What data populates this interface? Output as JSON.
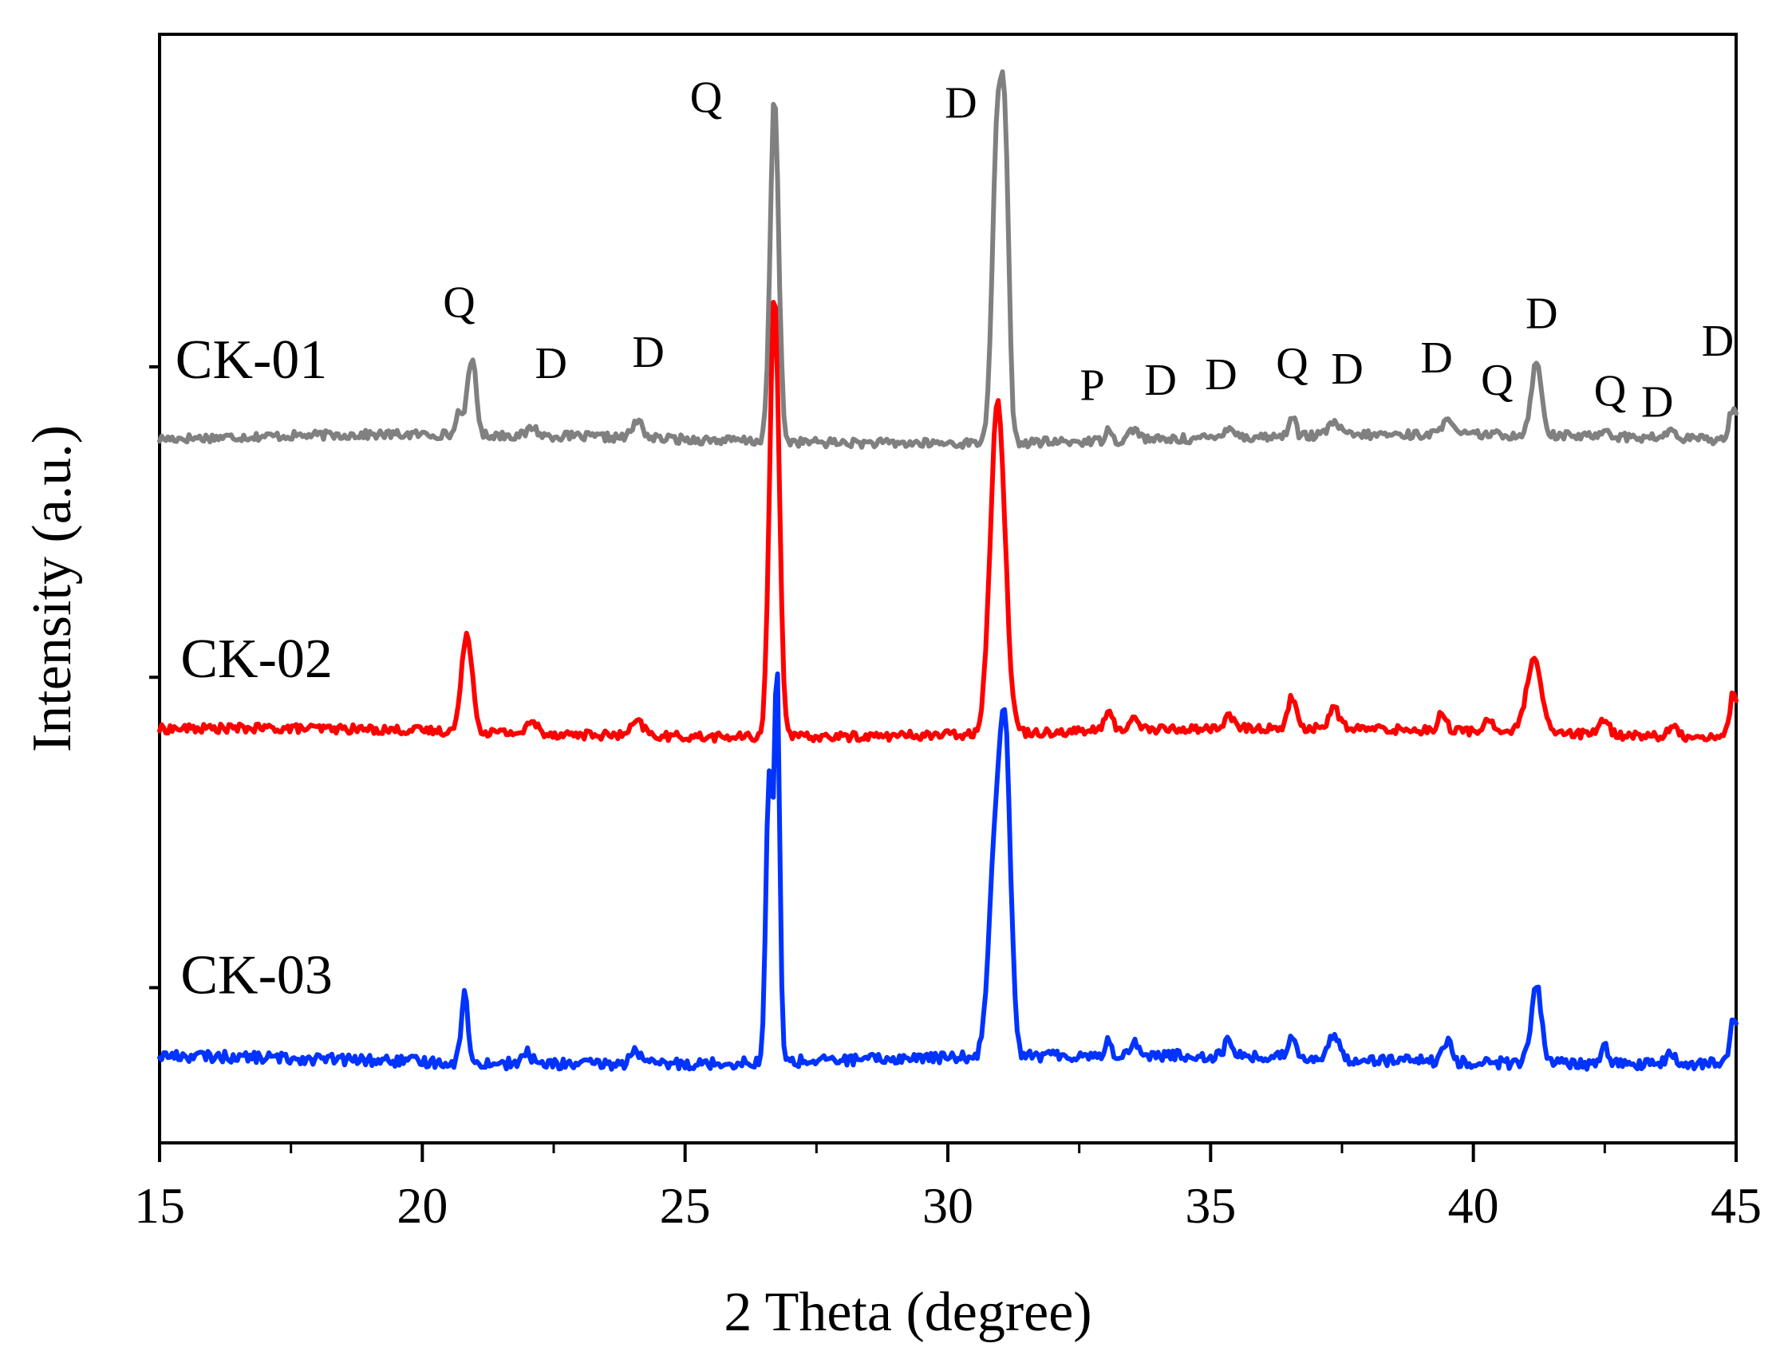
{
  "chart_data": {
    "type": "line",
    "title": "",
    "xlabel": "2 Theta (degree)",
    "ylabel": "Intensity (a.u.)",
    "xlim": [
      15,
      45
    ],
    "ylim": [
      0,
      1
    ],
    "xticks": [
      15,
      20,
      25,
      30,
      35,
      40,
      45
    ],
    "xtick_labels": [
      "15",
      "20",
      "25",
      "30",
      "35",
      "40",
      "45"
    ],
    "xminor_step": 2.5,
    "yticks": [
      0.14,
      0.42,
      0.7
    ],
    "grid": false,
    "series": [
      {
        "name": "CK-01",
        "color": "#808080",
        "baseline": 0.635,
        "noise": 0.004,
        "peaks": [
          [
            20.7,
            0.025,
            0.05
          ],
          [
            20.9,
            0.055,
            0.06
          ],
          [
            21.0,
            0.045,
            0.05
          ],
          [
            22.1,
            0.008,
            0.08
          ],
          [
            24.1,
            0.015,
            0.1
          ],
          [
            26.7,
            0.31,
            0.08
          ],
          [
            30.95,
            0.29,
            0.1
          ],
          [
            31.1,
            0.2,
            0.07
          ],
          [
            33.05,
            0.014,
            0.05
          ],
          [
            33.55,
            0.01,
            0.1
          ],
          [
            35.35,
            0.01,
            0.1
          ],
          [
            36.55,
            0.02,
            0.06
          ],
          [
            37.35,
            0.012,
            0.1
          ],
          [
            39.5,
            0.018,
            0.08
          ],
          [
            41.2,
            0.065,
            0.1
          ],
          [
            42.5,
            0.006,
            0.1
          ],
          [
            43.75,
            0.006,
            0.1
          ],
          [
            44.95,
            0.03,
            0.08
          ]
        ],
        "label_x": 15.3,
        "label_y": 0.69,
        "peak_labels": [
          {
            "text": "Q",
            "x": 20.7,
            "y": 0.745
          },
          {
            "text": "D",
            "x": 22.45,
            "y": 0.69
          },
          {
            "text": "D",
            "x": 24.3,
            "y": 0.7
          },
          {
            "text": "Q",
            "x": 25.4,
            "y": 0.93
          },
          {
            "text": "D",
            "x": 30.25,
            "y": 0.925
          },
          {
            "text": "P",
            "x": 32.75,
            "y": 0.67
          },
          {
            "text": "D",
            "x": 34.05,
            "y": 0.675
          },
          {
            "text": "D",
            "x": 35.2,
            "y": 0.68
          },
          {
            "text": "Q",
            "x": 36.55,
            "y": 0.69
          },
          {
            "text": "D",
            "x": 37.6,
            "y": 0.685
          },
          {
            "text": "D",
            "x": 39.3,
            "y": 0.695
          },
          {
            "text": "Q",
            "x": 40.45,
            "y": 0.675
          },
          {
            "text": "D",
            "x": 41.3,
            "y": 0.735
          },
          {
            "text": "Q",
            "x": 42.6,
            "y": 0.665
          },
          {
            "text": "D",
            "x": 43.5,
            "y": 0.655
          },
          {
            "text": "D",
            "x": 44.65,
            "y": 0.71
          }
        ]
      },
      {
        "name": "CK-02",
        "color": "#ff0000",
        "baseline": 0.37,
        "noise": 0.004,
        "peaks": [
          [
            20.85,
            0.09,
            0.1
          ],
          [
            22.1,
            0.01,
            0.1
          ],
          [
            24.1,
            0.012,
            0.12
          ],
          [
            26.7,
            0.4,
            0.09
          ],
          [
            30.95,
            0.3,
            0.14
          ],
          [
            33.05,
            0.016,
            0.08
          ],
          [
            33.55,
            0.01,
            0.1
          ],
          [
            35.35,
            0.01,
            0.1
          ],
          [
            36.55,
            0.028,
            0.08
          ],
          [
            37.35,
            0.018,
            0.1
          ],
          [
            39.4,
            0.015,
            0.08
          ],
          [
            40.3,
            0.01,
            0.1
          ],
          [
            41.15,
            0.065,
            0.14
          ],
          [
            42.5,
            0.015,
            0.08
          ],
          [
            43.8,
            0.008,
            0.08
          ],
          [
            44.95,
            0.04,
            0.07
          ]
        ],
        "label_x": 15.4,
        "label_y": 0.42,
        "peak_labels": []
      },
      {
        "name": "CK-03",
        "color": "#0033ff",
        "baseline": 0.075,
        "noise": 0.005,
        "peaks": [
          [
            20.8,
            0.065,
            0.06
          ],
          [
            22.0,
            0.01,
            0.08
          ],
          [
            24.05,
            0.015,
            0.08
          ],
          [
            26.6,
            0.26,
            0.06
          ],
          [
            26.75,
            0.35,
            0.05
          ],
          [
            30.9,
            0.19,
            0.12
          ],
          [
            31.1,
            0.26,
            0.1
          ],
          [
            33.05,
            0.012,
            0.06
          ],
          [
            33.55,
            0.012,
            0.08
          ],
          [
            35.35,
            0.015,
            0.08
          ],
          [
            36.55,
            0.02,
            0.08
          ],
          [
            37.35,
            0.02,
            0.1
          ],
          [
            39.5,
            0.02,
            0.07
          ],
          [
            41.2,
            0.07,
            0.1
          ],
          [
            42.5,
            0.015,
            0.08
          ],
          [
            43.75,
            0.008,
            0.08
          ],
          [
            44.95,
            0.04,
            0.07
          ]
        ],
        "label_x": 15.4,
        "label_y": 0.135,
        "peak_labels": []
      }
    ]
  }
}
